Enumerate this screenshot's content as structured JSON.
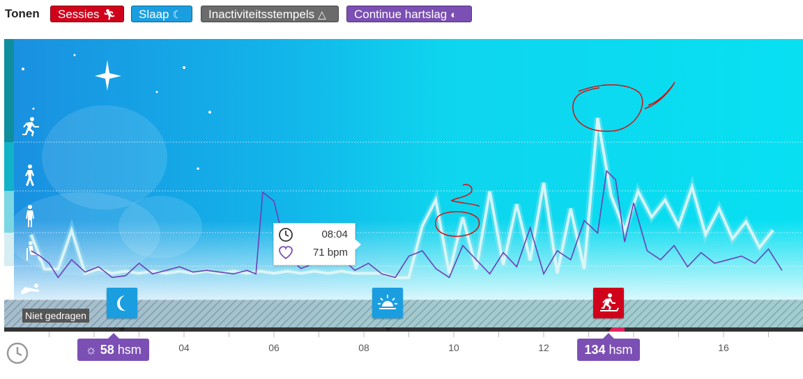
{
  "toolbar": {
    "label": "Tonen",
    "chips": [
      {
        "label": "Sessies",
        "color": "#d0021b",
        "icon": "running-icon"
      },
      {
        "label": "Slaap",
        "color": "#1a9ee0",
        "icon": "moon-icon"
      },
      {
        "label": "Inactiviteitsstempels",
        "color": "#6b6b6b",
        "icon": "inactivity-icon"
      },
      {
        "label": "Continue hartslag",
        "color": "#7b4fb3",
        "icon": "heartrate-icon"
      }
    ]
  },
  "status": {
    "not_worn": "Niet gedragen"
  },
  "tooltip": {
    "time": "08:04",
    "bpm": "71 bpm"
  },
  "hr_badges": [
    {
      "value": "58",
      "unit": "hsm",
      "icon": "sun-icon"
    },
    {
      "value": "134",
      "unit": "hsm"
    }
  ],
  "markers": [
    {
      "type": "sleep",
      "icon": "moon-icon",
      "color": "#1a9ee0"
    },
    {
      "type": "wake",
      "icon": "sunrise-icon",
      "color": "#1a9ee0"
    },
    {
      "type": "session",
      "icon": "treadmill-icon",
      "color": "#d0021b"
    }
  ],
  "chart_data": {
    "type": "line",
    "x_ticks": [
      "04",
      "06",
      "08",
      "10",
      "12",
      "16"
    ],
    "activity_levels": [
      "running",
      "walking",
      "standing",
      "sitting",
      "lying"
    ],
    "series": [
      {
        "name": "hartslag",
        "color": "#6a3fb5",
        "x": [
          0.6,
          0.8,
          1.0,
          1.2,
          1.5,
          1.8,
          2.1,
          2.4,
          2.7,
          3.0,
          3.3,
          3.6,
          3.9,
          4.2,
          4.5,
          4.8,
          5.1,
          5.4,
          5.6,
          5.75,
          6.0,
          6.3,
          6.6,
          6.9,
          7.2,
          7.5,
          7.8,
          8.1,
          8.4,
          8.7,
          9.0,
          9.3,
          9.6,
          9.9,
          10.2,
          10.5,
          10.8,
          11.1,
          11.4,
          11.7,
          12.0,
          12.3,
          12.6,
          12.9,
          13.2,
          13.4,
          13.6,
          13.8,
          14.0,
          14.3,
          14.6,
          14.9,
          15.2,
          15.5,
          15.8,
          16.1,
          16.4,
          16.7,
          17.0,
          17.3
        ],
        "y": [
          75,
          72,
          68,
          60,
          70,
          63,
          66,
          60,
          61,
          68,
          62,
          64,
          66,
          63,
          64,
          63,
          62,
          64,
          62,
          108,
          103,
          72,
          65,
          68,
          70,
          71,
          64,
          68,
          62,
          60,
          72,
          75,
          65,
          60,
          78,
          70,
          62,
          74,
          66,
          88,
          62,
          75,
          70,
          92,
          85,
          120,
          115,
          80,
          102,
          75,
          70,
          78,
          66,
          74,
          68,
          70,
          72,
          68,
          76,
          64
        ]
      },
      {
        "name": "activiteit",
        "color": "#ffffff",
        "x": [
          0.6,
          0.9,
          1.2,
          1.5,
          1.8,
          2.1,
          2.4,
          2.7,
          3.0,
          3.3,
          3.6,
          3.9,
          4.2,
          4.5,
          4.8,
          5.1,
          5.4,
          5.7,
          6.0,
          6.3,
          6.6,
          6.9,
          7.2,
          7.5,
          7.8,
          8.1,
          8.4,
          8.7,
          9.0,
          9.3,
          9.6,
          9.9,
          10.2,
          10.5,
          10.8,
          11.1,
          11.4,
          11.7,
          12.0,
          12.3,
          12.6,
          12.9,
          13.2,
          13.5,
          13.8,
          14.1,
          14.4,
          14.7,
          15.0,
          15.3,
          15.6,
          15.9,
          16.2,
          16.5,
          16.8,
          17.1
        ],
        "y": [
          1.2,
          0.4,
          0.4,
          1.3,
          0.3,
          0.4,
          0.3,
          0.35,
          0.3,
          0.35,
          0.3,
          0.35,
          0.3,
          0.35,
          0.3,
          0.35,
          0.3,
          0.35,
          0.3,
          0.35,
          0.3,
          0.35,
          0.3,
          0.35,
          0.3,
          0.3,
          0.3,
          0.2,
          0.2,
          1.4,
          2.0,
          0.3,
          1.6,
          0.4,
          2.2,
          0.5,
          1.9,
          0.6,
          2.4,
          0.3,
          1.8,
          0.4,
          3.9,
          2.1,
          1.3,
          2.2,
          1.6,
          2.0,
          1.4,
          2.3,
          1.2,
          1.8,
          1.1,
          1.5,
          0.9,
          1.3
        ]
      }
    ]
  }
}
